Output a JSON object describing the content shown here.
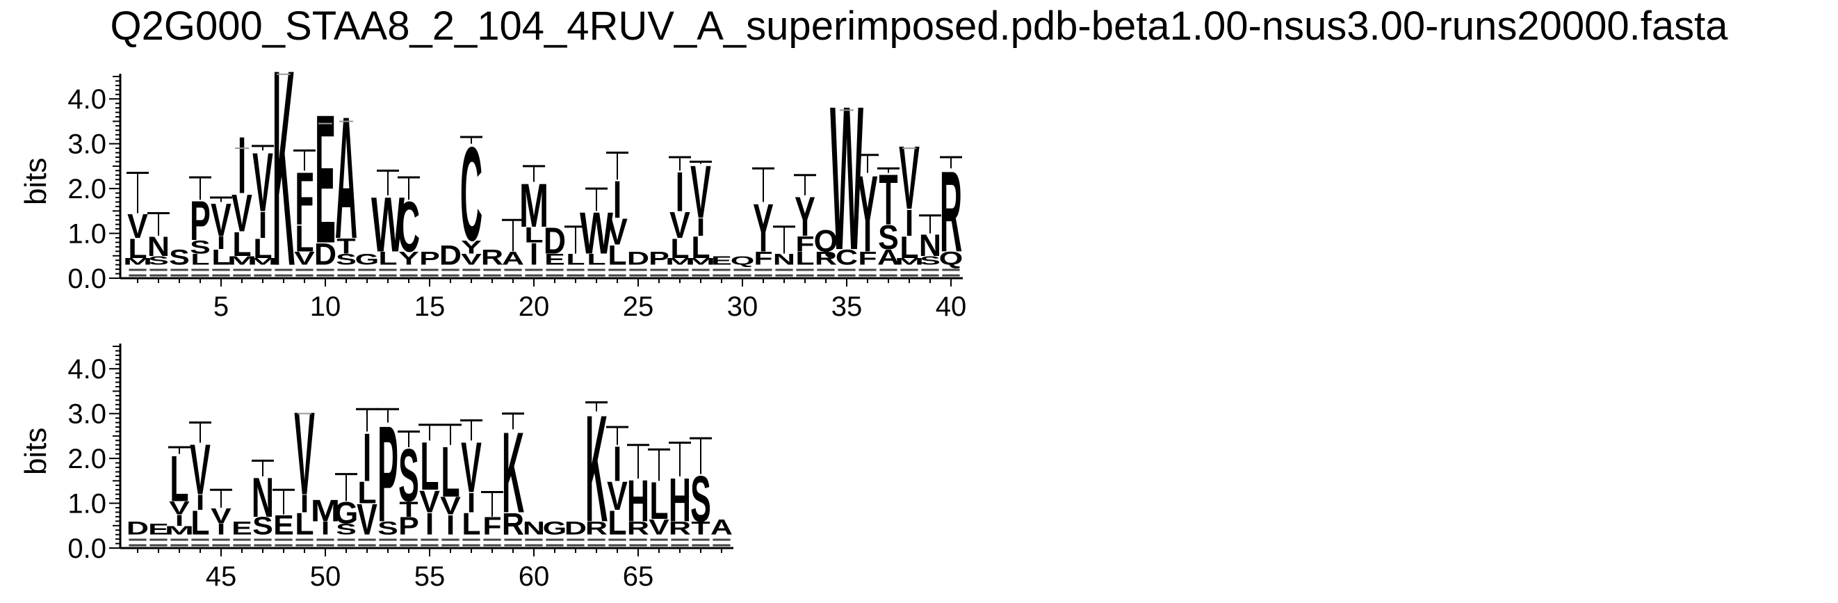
{
  "chart_data": {
    "type": "sequence-logo",
    "title": "Q2G000_STAA8_2_104_4RUV_A_superimposed.pdb-beta1.00-nsus3.00-runs20000.fasta",
    "ylabel": "bits",
    "ylim": [
      0,
      4.5
    ],
    "yticks": [
      "0.0",
      "1.0",
      "2.0",
      "3.0",
      "4.0"
    ],
    "panels": [
      {
        "start": 1,
        "end": 40,
        "xticks": [
          5,
          10,
          15,
          20,
          25,
          30,
          35,
          40
        ]
      },
      {
        "start": 41,
        "end": 69,
        "xticks": [
          45,
          50,
          55,
          60,
          65
        ]
      }
    ],
    "positions": [
      {
        "pos": 1,
        "err": 2.35,
        "letters": [
          [
            "M",
            0.15
          ],
          [
            "L",
            0.45
          ],
          [
            "V",
            0.55
          ]
        ]
      },
      {
        "pos": 2,
        "err": 1.45,
        "letters": [
          [
            "S",
            0.2
          ],
          [
            "N",
            0.45
          ]
        ]
      },
      {
        "pos": 3,
        "err": 0.0,
        "letters": [
          [
            "S",
            0.35
          ]
        ]
      },
      {
        "pos": 4,
        "err": 2.25,
        "letters": [
          [
            "L",
            0.25
          ],
          [
            "S",
            0.3
          ],
          [
            "P",
            0.9
          ]
        ]
      },
      {
        "pos": 5,
        "err": 1.8,
        "letters": [
          [
            "L",
            0.35
          ],
          [
            "I",
            0.3
          ],
          [
            "V",
            0.75
          ]
        ]
      },
      {
        "pos": 6,
        "err": 2.9,
        "letters": [
          [
            "M",
            0.2
          ],
          [
            "L",
            0.55
          ],
          [
            "V",
            0.85
          ],
          [
            "I",
            1.3
          ]
        ]
      },
      {
        "pos": 7,
        "err": 2.95,
        "letters": [
          [
            "M",
            0.15
          ],
          [
            "L",
            0.45
          ],
          [
            "I",
            0.6
          ],
          [
            "V",
            1.35
          ]
        ]
      },
      {
        "pos": 8,
        "err": 4.55,
        "letters": [
          [
            "K",
            4.5
          ]
        ]
      },
      {
        "pos": 9,
        "err": 2.85,
        "letters": [
          [
            "V",
            0.3
          ],
          [
            "L",
            0.6
          ],
          [
            "F",
            1.2
          ]
        ]
      },
      {
        "pos": 10,
        "err": 3.45,
        "letters": [
          [
            "D",
            0.5
          ],
          [
            "E",
            2.95
          ]
        ]
      },
      {
        "pos": 11,
        "err": 3.5,
        "letters": [
          [
            "S",
            0.25
          ],
          [
            "T",
            0.35
          ],
          [
            "A",
            2.8
          ]
        ]
      },
      {
        "pos": 12,
        "err": 0.0,
        "letters": [
          [
            "G",
            0.25
          ]
        ]
      },
      {
        "pos": 13,
        "err": 2.4,
        "letters": [
          [
            "L",
            0.3
          ],
          [
            "W",
            1.25
          ]
        ]
      },
      {
        "pos": 14,
        "err": 2.25,
        "letters": [
          [
            "Y",
            0.3
          ],
          [
            "C",
            1.15
          ]
        ]
      },
      {
        "pos": 15,
        "err": 0.0,
        "letters": [
          [
            "P",
            0.3
          ]
        ]
      },
      {
        "pos": 16,
        "err": 0.0,
        "letters": [
          [
            "D",
            0.45
          ]
        ]
      },
      {
        "pos": 17,
        "err": 3.15,
        "letters": [
          [
            "V",
            0.25
          ],
          [
            "Y",
            0.3
          ],
          [
            "C",
            2.15
          ]
        ]
      },
      {
        "pos": 18,
        "err": 0.0,
        "letters": [
          [
            "R",
            0.35
          ]
        ]
      },
      {
        "pos": 19,
        "err": 1.3,
        "letters": [
          [
            "A",
            0.3
          ]
        ]
      },
      {
        "pos": 20,
        "err": 2.5,
        "letters": [
          [
            "I",
            0.5
          ],
          [
            "L",
            0.35
          ],
          [
            "M",
            1.0
          ]
        ]
      },
      {
        "pos": 21,
        "err": 0.0,
        "letters": [
          [
            "E",
            0.25
          ],
          [
            "D",
            0.6
          ]
        ]
      },
      {
        "pos": 22,
        "err": 1.15,
        "letters": [
          [
            "L",
            0.25
          ]
        ]
      },
      {
        "pos": 23,
        "err": 2.0,
        "letters": [
          [
            "L",
            0.25
          ],
          [
            "W",
            0.95
          ]
        ]
      },
      {
        "pos": 24,
        "err": 2.8,
        "letters": [
          [
            "L",
            0.45
          ],
          [
            "V",
            0.6
          ],
          [
            "I",
            0.85
          ]
        ]
      },
      {
        "pos": 25,
        "err": 0.0,
        "letters": [
          [
            "D",
            0.3
          ]
        ]
      },
      {
        "pos": 26,
        "err": 0.0,
        "letters": [
          [
            "P",
            0.3
          ]
        ]
      },
      {
        "pos": 27,
        "err": 2.7,
        "letters": [
          [
            "M",
            0.15
          ],
          [
            "L",
            0.45
          ],
          [
            "V",
            0.6
          ],
          [
            "I",
            0.9
          ]
        ]
      },
      {
        "pos": 28,
        "err": 2.6,
        "letters": [
          [
            "M",
            0.15
          ],
          [
            "L",
            0.5
          ],
          [
            "I",
            0.4
          ],
          [
            "V",
            1.2
          ]
        ]
      },
      {
        "pos": 29,
        "err": 0.0,
        "letters": [
          [
            "E",
            0.2
          ]
        ]
      },
      {
        "pos": 30,
        "err": 0.0,
        "letters": [
          [
            "Q",
            0.2
          ]
        ]
      },
      {
        "pos": 31,
        "err": 2.45,
        "letters": [
          [
            "F",
            0.3
          ],
          [
            "Y",
            1.1
          ]
        ]
      },
      {
        "pos": 32,
        "err": 1.15,
        "letters": [
          [
            "N",
            0.25
          ]
        ]
      },
      {
        "pos": 33,
        "err": 2.3,
        "letters": [
          [
            "L",
            0.3
          ],
          [
            "F",
            0.35
          ],
          [
            "Y",
            0.9
          ]
        ]
      },
      {
        "pos": 34,
        "err": 0.0,
        "letters": [
          [
            "R",
            0.3
          ],
          [
            "Q",
            0.5
          ]
        ]
      },
      {
        "pos": 35,
        "err": 3.75,
        "letters": [
          [
            "C",
            0.35
          ],
          [
            "W",
            3.3
          ]
        ]
      },
      {
        "pos": 36,
        "err": 2.75,
        "letters": [
          [
            "F",
            0.3
          ],
          [
            "Y",
            1.75
          ]
        ]
      },
      {
        "pos": 37,
        "err": 2.45,
        "letters": [
          [
            "A",
            0.35
          ],
          [
            "S",
            0.55
          ],
          [
            "T",
            1.15
          ]
        ]
      },
      {
        "pos": 38,
        "err": 2.9,
        "letters": [
          [
            "M",
            0.15
          ],
          [
            "L",
            0.5
          ],
          [
            "I",
            0.6
          ],
          [
            "V",
            1.45
          ]
        ]
      },
      {
        "pos": 39,
        "err": 1.4,
        "letters": [
          [
            "S",
            0.2
          ],
          [
            "N",
            0.5
          ]
        ]
      },
      {
        "pos": 40,
        "err": 2.7,
        "letters": [
          [
            "Q",
            0.3
          ],
          [
            "R",
            1.85
          ]
        ]
      },
      {
        "pos": 41,
        "err": 0.0,
        "letters": [
          [
            "D",
            0.3
          ]
        ]
      },
      {
        "pos": 42,
        "err": 0.0,
        "letters": [
          [
            "E",
            0.25
          ]
        ]
      },
      {
        "pos": 43,
        "err": 2.25,
        "letters": [
          [
            "M",
            0.2
          ],
          [
            "I",
            0.25
          ],
          [
            "V",
            0.3
          ],
          [
            "L",
            1.05
          ]
        ]
      },
      {
        "pos": 44,
        "err": 2.8,
        "letters": [
          [
            "L",
            0.55
          ],
          [
            "I",
            0.35
          ],
          [
            "V",
            1.15
          ]
        ]
      },
      {
        "pos": 45,
        "err": 1.3,
        "letters": [
          [
            "I",
            0.25
          ],
          [
            "V",
            0.35
          ]
        ]
      },
      {
        "pos": 46,
        "err": 0.0,
        "letters": [
          [
            "E",
            0.3
          ]
        ]
      },
      {
        "pos": 47,
        "err": 1.95,
        "letters": [
          [
            "S",
            0.4
          ],
          [
            "N",
            0.9
          ]
        ]
      },
      {
        "pos": 48,
        "err": 1.3,
        "letters": [
          [
            "E",
            0.45
          ]
        ]
      },
      {
        "pos": 49,
        "err": 3.0,
        "letters": [
          [
            "L",
            0.5
          ],
          [
            "I",
            0.4
          ],
          [
            "V",
            1.9
          ]
        ]
      },
      {
        "pos": 50,
        "err": 0.0,
        "letters": [
          [
            "I",
            0.3
          ],
          [
            "M",
            0.5
          ]
        ]
      },
      {
        "pos": 51,
        "err": 1.65,
        "letters": [
          [
            "S",
            0.25
          ],
          [
            "G",
            0.5
          ]
        ]
      },
      {
        "pos": 52,
        "err": 3.1,
        "letters": [
          [
            "V",
            0.7
          ],
          [
            "L",
            0.5
          ],
          [
            "I",
            1.1
          ]
        ]
      },
      {
        "pos": 53,
        "err": 3.1,
        "letters": [
          [
            "S",
            0.3
          ],
          [
            "P",
            2.2
          ]
        ]
      },
      {
        "pos": 54,
        "err": 2.6,
        "letters": [
          [
            "P",
            0.4
          ],
          [
            "T",
            0.35
          ],
          [
            "S",
            1.2
          ]
        ]
      },
      {
        "pos": 55,
        "err": 2.75,
        "letters": [
          [
            "I",
            0.5
          ],
          [
            "V",
            0.5
          ],
          [
            "L",
            1.1
          ]
        ]
      },
      {
        "pos": 56,
        "err": 2.75,
        "letters": [
          [
            "I",
            0.45
          ],
          [
            "V",
            0.4
          ],
          [
            "L",
            1.15
          ]
        ]
      },
      {
        "pos": 57,
        "err": 2.85,
        "letters": [
          [
            "L",
            0.5
          ],
          [
            "I",
            0.45
          ],
          [
            "V",
            1.15
          ]
        ]
      },
      {
        "pos": 58,
        "err": 1.25,
        "letters": [
          [
            "F",
            0.4
          ]
        ]
      },
      {
        "pos": 59,
        "err": 3.0,
        "letters": [
          [
            "R",
            0.5
          ],
          [
            "K",
            1.85
          ]
        ]
      },
      {
        "pos": 60,
        "err": 0.0,
        "letters": [
          [
            "N",
            0.3
          ]
        ]
      },
      {
        "pos": 61,
        "err": 0.0,
        "letters": [
          [
            "G",
            0.3
          ]
        ]
      },
      {
        "pos": 62,
        "err": 0.0,
        "letters": [
          [
            "D",
            0.3
          ]
        ]
      },
      {
        "pos": 63,
        "err": 3.25,
        "letters": [
          [
            "R",
            0.3
          ],
          [
            "K",
            2.45
          ]
        ]
      },
      {
        "pos": 64,
        "err": 2.7,
        "letters": [
          [
            "L",
            0.55
          ],
          [
            "V",
            0.65
          ],
          [
            "I",
            0.8
          ]
        ]
      },
      {
        "pos": 65,
        "err": 2.3,
        "letters": [
          [
            "R",
            0.3
          ],
          [
            "H",
            0.95
          ]
        ]
      },
      {
        "pos": 66,
        "err": 2.2,
        "letters": [
          [
            "V",
            0.35
          ],
          [
            "L",
            0.85
          ]
        ]
      },
      {
        "pos": 67,
        "err": 2.35,
        "letters": [
          [
            "R",
            0.3
          ],
          [
            "H",
            1.0
          ]
        ]
      },
      {
        "pos": 68,
        "err": 2.45,
        "letters": [
          [
            "T",
            0.3
          ],
          [
            "S",
            1.05
          ]
        ]
      },
      {
        "pos": 69,
        "err": 0.0,
        "letters": [
          [
            "A",
            0.35
          ]
        ]
      }
    ]
  }
}
